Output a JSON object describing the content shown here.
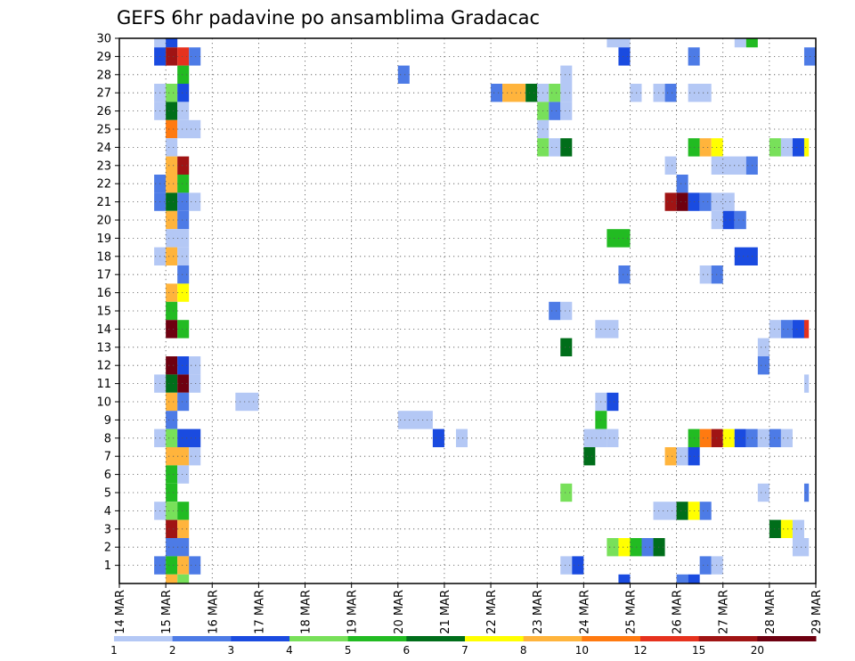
{
  "chart_data": {
    "type": "heatmap",
    "title": "GEFS 6hr padavine po ansamblima Gradacac",
    "x_tick_labels": [
      "14 MAR",
      "15 MAR",
      "16 MAR",
      "17 MAR",
      "18 MAR",
      "19 MAR",
      "20 MAR",
      "21 MAR",
      "22 MAR",
      "23 MAR",
      "24 MAR",
      "25 MAR",
      "26 MAR",
      "27 MAR",
      "28 MAR",
      "29 MAR"
    ],
    "y_tick_labels": [
      "1",
      "2",
      "3",
      "4",
      "5",
      "6",
      "7",
      "8",
      "9",
      "10",
      "11",
      "12",
      "13",
      "14",
      "15",
      "16",
      "17",
      "18",
      "19",
      "20",
      "21",
      "22",
      "23",
      "24",
      "25",
      "26",
      "27",
      "28",
      "29",
      "30"
    ],
    "x_range_days": [
      0,
      15
    ],
    "y_range": [
      0,
      30
    ],
    "cell_width_days": 0.25,
    "grid": "dotted",
    "colorbar": {
      "labels": [
        "1",
        "2",
        "3",
        "4",
        "5",
        "6",
        "7",
        "8",
        "10",
        "12",
        "15",
        "20"
      ],
      "colors": [
        "#b4c8f5",
        "#4d7be6",
        "#1a4be0",
        "#78e05a",
        "#22bb22",
        "#006e1a",
        "#ffff00",
        "#ffb43c",
        "#ff7a10",
        "#e6321e",
        "#a01414",
        "#6e0010"
      ]
    },
    "cells": [
      {
        "y": 30,
        "x": [
          [
            0.75,
            0.25,
            1
          ],
          [
            1,
            0.25,
            3
          ],
          [
            10.5,
            0.5,
            1
          ],
          [
            13.25,
            0.25,
            1
          ],
          [
            13.5,
            0.25,
            5
          ]
        ]
      },
      {
        "y": 29,
        "x": [
          [
            0.75,
            0.25,
            3
          ],
          [
            1,
            0.25,
            11
          ],
          [
            1.25,
            0.25,
            10
          ],
          [
            1.5,
            0.25,
            2
          ],
          [
            10.75,
            0.25,
            3
          ],
          [
            12.25,
            0.25,
            2
          ],
          [
            14.75,
            0.25,
            2
          ]
        ]
      },
      {
        "y": 28,
        "x": [
          [
            1.25,
            0.25,
            5
          ],
          [
            6,
            0.25,
            2
          ],
          [
            9.5,
            0.25,
            1
          ]
        ]
      },
      {
        "y": 27,
        "x": [
          [
            0.75,
            0.25,
            1
          ],
          [
            1,
            0.25,
            4
          ],
          [
            1.25,
            0.25,
            3
          ],
          [
            8,
            0.25,
            2
          ],
          [
            8.25,
            0.5,
            8
          ],
          [
            8.75,
            0.25,
            6
          ],
          [
            9,
            0.25,
            1
          ],
          [
            9.25,
            0.25,
            4
          ],
          [
            9.5,
            0.25,
            1
          ],
          [
            11,
            0.25,
            1
          ],
          [
            11.5,
            0.25,
            1
          ],
          [
            11.75,
            0.25,
            2
          ],
          [
            12.25,
            0.5,
            1
          ]
        ]
      },
      {
        "y": 26,
        "x": [
          [
            0.75,
            0.25,
            1
          ],
          [
            1,
            0.25,
            6
          ],
          [
            1.25,
            0.25,
            1
          ],
          [
            9,
            0.25,
            4
          ],
          [
            9.25,
            0.25,
            2
          ],
          [
            9.5,
            0.25,
            1
          ]
        ]
      },
      {
        "y": 25,
        "x": [
          [
            1,
            0.25,
            9
          ],
          [
            1.25,
            0.5,
            1
          ],
          [
            9,
            0.25,
            1
          ]
        ]
      },
      {
        "y": 24,
        "x": [
          [
            1,
            0.25,
            1
          ],
          [
            9,
            0.25,
            4
          ],
          [
            9.25,
            0.25,
            1
          ],
          [
            9.5,
            0.25,
            6
          ],
          [
            12.25,
            0.25,
            5
          ],
          [
            12.5,
            0.25,
            8
          ],
          [
            12.75,
            0.25,
            7
          ],
          [
            14,
            0.25,
            4
          ],
          [
            14.25,
            0.25,
            1
          ],
          [
            14.5,
            0.25,
            3
          ],
          [
            14.75,
            0.1,
            7
          ]
        ]
      },
      {
        "y": 23,
        "x": [
          [
            1,
            0.25,
            8
          ],
          [
            1.25,
            0.25,
            11
          ],
          [
            11.75,
            0.25,
            1
          ],
          [
            12.75,
            0.75,
            1
          ],
          [
            13.5,
            0.25,
            2
          ]
        ]
      },
      {
        "y": 22,
        "x": [
          [
            0.75,
            0.25,
            2
          ],
          [
            1,
            0.25,
            8
          ],
          [
            1.25,
            0.25,
            5
          ],
          [
            12,
            0.25,
            2
          ]
        ]
      },
      {
        "y": 21,
        "x": [
          [
            0.75,
            0.25,
            2
          ],
          [
            1,
            0.25,
            6
          ],
          [
            1.25,
            0.25,
            2
          ],
          [
            1.5,
            0.25,
            1
          ],
          [
            11.75,
            0.25,
            11
          ],
          [
            12,
            0.25,
            12
          ],
          [
            12.25,
            0.25,
            3
          ],
          [
            12.5,
            0.25,
            2
          ],
          [
            12.75,
            0.5,
            1
          ]
        ]
      },
      {
        "y": 20,
        "x": [
          [
            1,
            0.25,
            8
          ],
          [
            1.25,
            0.25,
            2
          ],
          [
            12.75,
            0.25,
            1
          ],
          [
            13,
            0.25,
            3
          ],
          [
            13.25,
            0.25,
            2
          ]
        ]
      },
      {
        "y": 19,
        "x": [
          [
            1,
            0.5,
            1
          ],
          [
            10.5,
            0.5,
            5
          ]
        ]
      },
      {
        "y": 18,
        "x": [
          [
            0.75,
            0.25,
            1
          ],
          [
            1,
            0.25,
            8
          ],
          [
            1.25,
            0.25,
            1
          ],
          [
            13.25,
            0.5,
            3
          ]
        ]
      },
      {
        "y": 17,
        "x": [
          [
            1.25,
            0.25,
            2
          ],
          [
            10.75,
            0.25,
            2
          ],
          [
            12.5,
            0.25,
            1
          ],
          [
            12.75,
            0.25,
            2
          ]
        ]
      },
      {
        "y": 16,
        "x": [
          [
            1,
            0.25,
            8
          ],
          [
            1.25,
            0.25,
            7
          ]
        ]
      },
      {
        "y": 15,
        "x": [
          [
            1,
            0.25,
            5
          ],
          [
            9.25,
            0.25,
            2
          ],
          [
            9.5,
            0.25,
            1
          ]
        ]
      },
      {
        "y": 14,
        "x": [
          [
            1,
            0.25,
            12
          ],
          [
            1.25,
            0.25,
            5
          ],
          [
            10.25,
            0.5,
            1
          ],
          [
            14,
            0.25,
            1
          ],
          [
            14.25,
            0.25,
            2
          ],
          [
            14.5,
            0.25,
            3
          ],
          [
            14.75,
            0.1,
            10
          ]
        ]
      },
      {
        "y": 13,
        "x": [
          [
            9.5,
            0.25,
            6
          ],
          [
            13.75,
            0.25,
            1
          ]
        ]
      },
      {
        "y": 12,
        "x": [
          [
            1,
            0.25,
            12
          ],
          [
            1.25,
            0.25,
            3
          ],
          [
            1.5,
            0.25,
            1
          ],
          [
            13.75,
            0.25,
            2
          ]
        ]
      },
      {
        "y": 11,
        "x": [
          [
            0.75,
            0.25,
            1
          ],
          [
            1,
            0.25,
            6
          ],
          [
            1.25,
            0.25,
            12
          ],
          [
            1.5,
            0.25,
            1
          ],
          [
            14.75,
            0.1,
            1
          ]
        ]
      },
      {
        "y": 10,
        "x": [
          [
            1,
            0.25,
            8
          ],
          [
            1.25,
            0.25,
            2
          ],
          [
            2.5,
            0.5,
            1
          ],
          [
            10.25,
            0.25,
            1
          ],
          [
            10.5,
            0.25,
            3
          ]
        ]
      },
      {
        "y": 9,
        "x": [
          [
            1,
            0.25,
            2
          ],
          [
            6,
            0.75,
            1
          ],
          [
            10.25,
            0.25,
            5
          ]
        ]
      },
      {
        "y": 8,
        "x": [
          [
            0.75,
            0.25,
            1
          ],
          [
            1,
            0.25,
            4
          ],
          [
            1.25,
            0.5,
            3
          ],
          [
            6.75,
            0.25,
            3
          ],
          [
            7.25,
            0.25,
            1
          ],
          [
            10,
            0.5,
            1
          ],
          [
            10.5,
            0.25,
            1
          ],
          [
            12.25,
            0.25,
            5
          ],
          [
            12.5,
            0.25,
            9
          ],
          [
            12.75,
            0.25,
            11
          ],
          [
            13,
            0.25,
            7
          ],
          [
            13.25,
            0.25,
            3
          ],
          [
            13.5,
            0.25,
            2
          ],
          [
            13.75,
            0.25,
            1
          ],
          [
            14,
            0.25,
            2
          ],
          [
            14.25,
            0.25,
            1
          ]
        ]
      },
      {
        "y": 7,
        "x": [
          [
            1,
            0.5,
            8
          ],
          [
            1.5,
            0.25,
            1
          ],
          [
            10,
            0.25,
            6
          ],
          [
            11.75,
            0.25,
            8
          ],
          [
            12,
            0.25,
            1
          ],
          [
            12.25,
            0.25,
            3
          ]
        ]
      },
      {
        "y": 6,
        "x": [
          [
            1,
            0.25,
            5
          ],
          [
            1.25,
            0.25,
            1
          ]
        ]
      },
      {
        "y": 5,
        "x": [
          [
            1,
            0.25,
            5
          ],
          [
            9.5,
            0.25,
            4
          ],
          [
            13.75,
            0.25,
            1
          ],
          [
            14.75,
            0.1,
            2
          ]
        ]
      },
      {
        "y": 4,
        "x": [
          [
            0.75,
            0.25,
            1
          ],
          [
            1,
            0.25,
            4
          ],
          [
            1.25,
            0.25,
            5
          ],
          [
            11.5,
            0.5,
            1
          ],
          [
            12,
            0.25,
            6
          ],
          [
            12.25,
            0.25,
            7
          ],
          [
            12.5,
            0.25,
            2
          ]
        ]
      },
      {
        "y": 3,
        "x": [
          [
            1,
            0.25,
            11
          ],
          [
            1.25,
            0.25,
            8
          ],
          [
            14,
            0.25,
            6
          ],
          [
            14.25,
            0.25,
            7
          ],
          [
            14.5,
            0.25,
            1
          ]
        ]
      },
      {
        "y": 2,
        "x": [
          [
            1,
            0.5,
            2
          ],
          [
            10.5,
            0.25,
            4
          ],
          [
            10.75,
            0.25,
            7
          ],
          [
            11,
            0.25,
            5
          ],
          [
            11.25,
            0.25,
            2
          ],
          [
            11.5,
            0.25,
            6
          ],
          [
            14.5,
            0.35,
            1
          ]
        ]
      },
      {
        "y": 1,
        "x": [
          [
            0.75,
            0.25,
            2
          ],
          [
            1,
            0.25,
            5
          ],
          [
            1.25,
            0.25,
            8
          ],
          [
            1.5,
            0.25,
            2
          ],
          [
            9.5,
            0.25,
            1
          ],
          [
            9.75,
            0.25,
            3
          ],
          [
            12.5,
            0.25,
            2
          ],
          [
            12.75,
            0.25,
            1
          ]
        ]
      },
      {
        "y": 0,
        "x": [
          [
            1,
            0.25,
            8
          ],
          [
            1.25,
            0.25,
            4
          ],
          [
            10.75,
            0.25,
            3
          ],
          [
            12,
            0.25,
            2
          ],
          [
            12.25,
            0.25,
            3
          ]
        ]
      }
    ]
  }
}
